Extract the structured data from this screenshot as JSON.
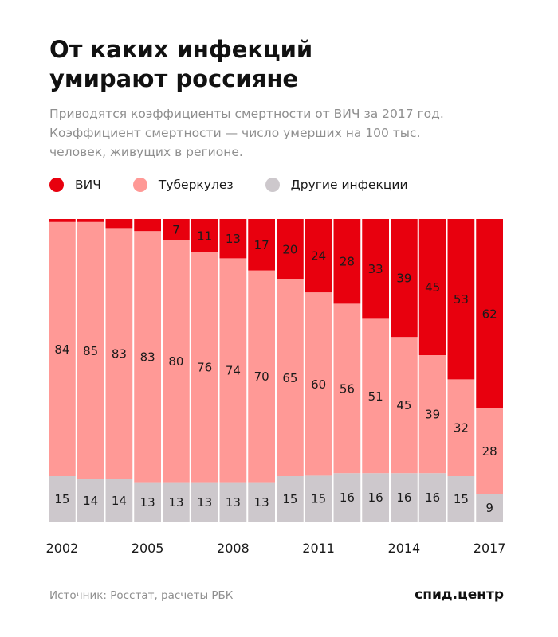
{
  "header": {
    "title_line1": "От каких инфекций",
    "title_line2": "умирают россияне",
    "subtitle_line1": "Приводятся коэффициенты смертности от ВИЧ за 2017 год.",
    "subtitle_line2": "Коэффициент смертности — число умерших на 100 тыс.",
    "subtitle_line3": "человек, живущих в регионе."
  },
  "legend": [
    {
      "label": "ВИЧ",
      "color": "#e8000e"
    },
    {
      "label": "Туберкулез",
      "color": "#ff9996"
    },
    {
      "label": "Другие инфекции",
      "color": "#cdc8cc"
    }
  ],
  "footer": {
    "source": "Источник: Росстат, расчеты РБК",
    "logo": "спид.центр"
  },
  "chart_data": {
    "type": "bar",
    "stacked": true,
    "normalized": true,
    "categories": [
      "2002",
      "2003",
      "2004",
      "2005",
      "2006",
      "2007",
      "2008",
      "2009",
      "2010",
      "2011",
      "2012",
      "2013",
      "2014",
      "2015",
      "2016",
      "2017"
    ],
    "x_tick_labels": [
      "2002",
      "2005",
      "2008",
      "2011",
      "2014",
      "2017"
    ],
    "series": [
      {
        "name": "Другие инфекции",
        "color": "#cdc8cc",
        "values": [
          15,
          14,
          14,
          13,
          13,
          13,
          13,
          13,
          15,
          15,
          16,
          16,
          16,
          16,
          15,
          9
        ],
        "show_labels": true
      },
      {
        "name": "Туберкулез",
        "color": "#ff9996",
        "values": [
          84,
          85,
          83,
          83,
          80,
          76,
          74,
          70,
          65,
          60,
          56,
          51,
          45,
          39,
          32,
          28
        ],
        "show_labels": true
      },
      {
        "name": "ВИЧ",
        "color": "#e8000e",
        "values": [
          1,
          1,
          3,
          4,
          7,
          11,
          13,
          17,
          20,
          24,
          28,
          33,
          39,
          45,
          53,
          62
        ],
        "show_labels": [
          false,
          false,
          false,
          false,
          true,
          true,
          true,
          true,
          true,
          true,
          true,
          true,
          true,
          true,
          true,
          true
        ]
      }
    ]
  }
}
